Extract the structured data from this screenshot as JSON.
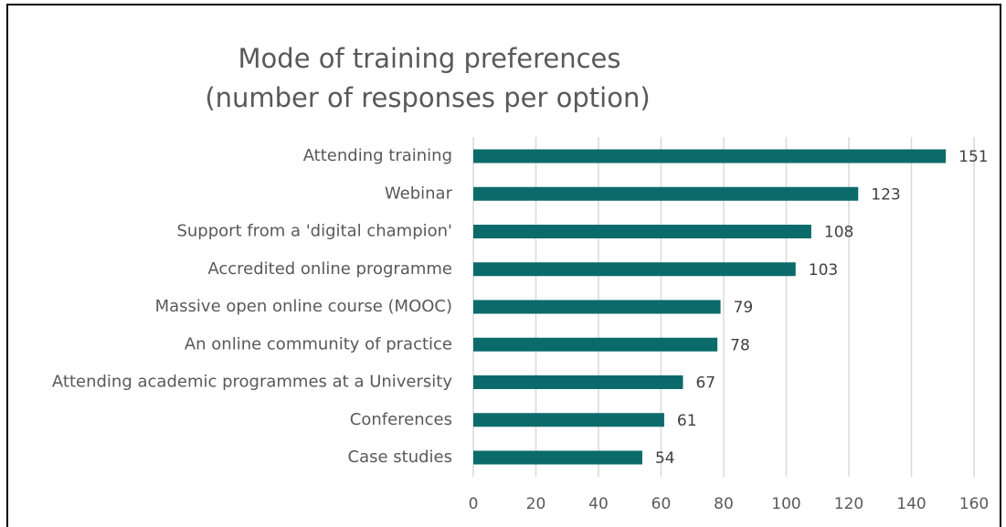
{
  "chart_data": {
    "type": "bar",
    "orientation": "horizontal",
    "title": "Mode of training preferences",
    "subtitle": "(number of responses per option)",
    "categories": [
      "Attending training",
      "Webinar",
      "Support from a 'digital champion'",
      "Accredited online programme",
      "Massive open online course (MOOC)",
      "An online community of practice",
      "Attending academic programmes at a University",
      "Conferences",
      "Case studies"
    ],
    "values": [
      151,
      123,
      108,
      103,
      79,
      78,
      67,
      61,
      54
    ],
    "color": "#0b6b6b",
    "xlim": [
      0,
      160
    ],
    "xticks": [
      0,
      20,
      40,
      60,
      80,
      100,
      120,
      140,
      160
    ],
    "grid": true
  }
}
